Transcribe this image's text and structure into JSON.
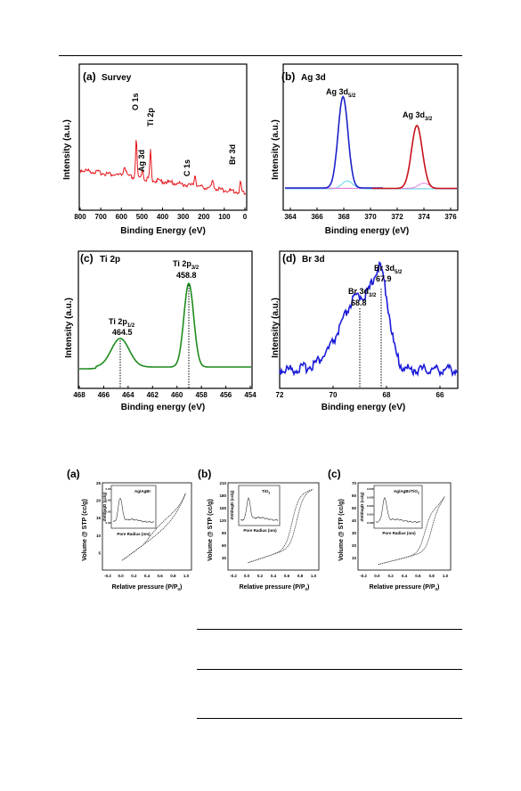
{
  "xps": {
    "a": {
      "panel": "(a)",
      "title": "Survey",
      "xlabel": "Binding Energy  (eV)",
      "ylabel": "Intensity  (a.u.)",
      "xticks": [
        "800",
        "700",
        "600",
        "500",
        "400",
        "300",
        "200",
        "100",
        "0"
      ],
      "peaks": [
        "O 1s",
        "Ti 2p",
        "Ag 3d",
        "C 1s",
        "Br 3d"
      ],
      "color": "#e4161c"
    },
    "b": {
      "panel": "(b)",
      "title": "Ag 3d",
      "xlabel": "Binding energy  (eV)",
      "ylabel": "Intensity  (a.u.)",
      "xticks": [
        "364",
        "366",
        "368",
        "370",
        "372",
        "374",
        "376"
      ],
      "peak1": "Ag 3d",
      "peak1_sub": "5/2",
      "peak2": "Ag 3d",
      "peak2_sub": "3/2",
      "colors": {
        "main1": "#1c22c8",
        "main2": "#c8121c",
        "fit1": "#5fd3e8",
        "fit2": "#e37ee0",
        "base": "#c56bd4"
      }
    },
    "c": {
      "panel": "(c)",
      "title": "Ti 2p",
      "xlabel": "Binding energy  (eV)",
      "ylabel": "Intensity  (a.u.)",
      "xticks": [
        "468",
        "466",
        "464",
        "462",
        "460",
        "458",
        "456",
        "454"
      ],
      "peak1": "Ti 2p",
      "peak1_sub": "1/2",
      "peak1_val": "464.5",
      "peak2": "Ti 2p",
      "peak2_sub": "3/2",
      "peak2_val": "458.8",
      "color": "#1e8c1e"
    },
    "d": {
      "panel": "(d)",
      "title": "Br 3d",
      "xlabel": "Binding energy  (eV)",
      "ylabel": "Intensity  (a.u.)",
      "xticks": [
        "72",
        "70",
        "68",
        "66"
      ],
      "peak1": "Br 3d",
      "peak1_sub": "3/2",
      "peak1_val": "68.8",
      "peak2": "Br 3d",
      "peak2_sub": "5/2",
      "peak2_val": "67.9",
      "color": "#1c1cd8"
    }
  },
  "bet": {
    "a": {
      "panel": "(a)",
      "ylabel": "Volume @ STP (cc/g)",
      "xlabel_main": "Relative pressure (P/P",
      "xlabel_sub": "0",
      "xlabel_end": ")",
      "xticks": [
        "-0.2",
        "0.0",
        "0.2",
        "0.4",
        "0.6",
        "0.8",
        "1.0"
      ],
      "yticks": [
        "5",
        "10",
        "15",
        "20",
        "25"
      ],
      "inset_title": "Ag/AgBr",
      "inset_xlabel": "Pore Radius (nm)",
      "inset_ylabel": "dV/dlogD (cc/g)",
      "inset_yticks": [
        "0.003",
        "0.002",
        "0.001",
        "0.000"
      ],
      "inset_xticks": [
        "0",
        "20",
        "40",
        "60",
        "80",
        "100"
      ]
    },
    "b": {
      "panel": "(b)",
      "ylabel": "Volume @ STP (cc/g)",
      "xlabel_main": "Relative pressure (P/P",
      "xlabel_sub": "0",
      "xlabel_end": ")",
      "xticks": [
        "-0.2",
        "0.0",
        "0.2",
        "0.4",
        "0.6",
        "0.8",
        "1.0"
      ],
      "yticks": [
        "30",
        "60",
        "90",
        "120",
        "150",
        "180",
        "210"
      ],
      "inset_title": "TiO",
      "inset_title_sub": "2",
      "inset_xlabel": "Pore Radius (nm)",
      "inset_ylabel": "dV/dlogD (cc/g)",
      "inset_xticks": [
        "0",
        "40",
        "80",
        "120"
      ]
    },
    "c": {
      "panel": "(c)",
      "ylabel": "Volume @ STP (cc/g)",
      "xlabel_main": "Relative pressure (P/P",
      "xlabel_sub": "0",
      "xlabel_end": ")",
      "xticks": [
        "-0.2",
        "0.0",
        "0.2",
        "0.4",
        "0.6",
        "0.8",
        "1.0"
      ],
      "yticks": [
        "10",
        "20",
        "30",
        "40",
        "50",
        "60",
        "70"
      ],
      "inset_title": "Ag/AgBr/TiO",
      "inset_title_sub": "2",
      "inset_xlabel": "Pore Radius (nm)",
      "inset_ylabel": "dV/dlogD (cc/g)",
      "inset_yticks": [
        "0.0025",
        "0.0020",
        "0.0015",
        "0.0010",
        "0.0005"
      ],
      "inset_xticks": [
        "0",
        "30",
        "60",
        "90",
        "120"
      ]
    }
  }
}
